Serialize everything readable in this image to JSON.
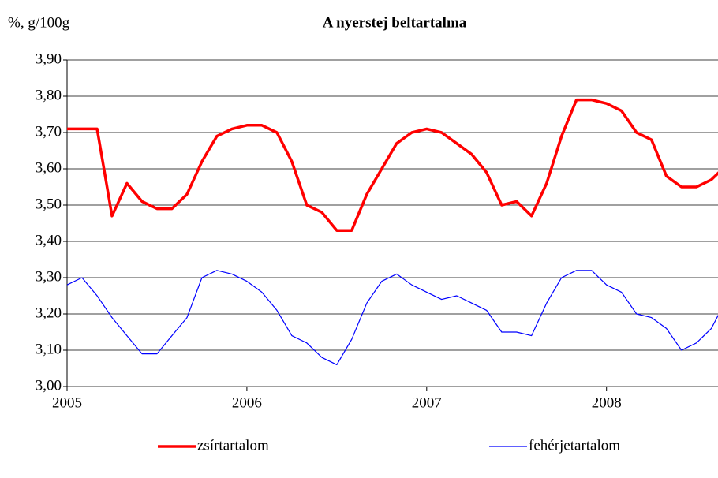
{
  "chart_data": {
    "type": "line",
    "title": "A nyerstej beltartalma",
    "y_label": "%, g/100g",
    "x": [
      2005,
      2005.083,
      2005.167,
      2005.25,
      2005.333,
      2005.417,
      2005.5,
      2005.583,
      2005.667,
      2005.75,
      2005.833,
      2005.917,
      2006,
      2006.083,
      2006.167,
      2006.25,
      2006.333,
      2006.417,
      2006.5,
      2006.583,
      2006.667,
      2006.75,
      2006.833,
      2006.917,
      2007,
      2007.083,
      2007.167,
      2007.25,
      2007.333,
      2007.417,
      2007.5,
      2007.583,
      2007.667,
      2007.75,
      2007.833,
      2007.917,
      2008,
      2008.083,
      2008.167,
      2008.25,
      2008.333,
      2008.417,
      2008.5,
      2008.583,
      2008.667
    ],
    "series": [
      {
        "name": "zsírtartalom",
        "color": "#ff0000",
        "width": 3.5,
        "values": [
          3.71,
          3.71,
          3.71,
          3.47,
          3.56,
          3.51,
          3.49,
          3.49,
          3.53,
          3.62,
          3.69,
          3.71,
          3.72,
          3.72,
          3.7,
          3.62,
          3.5,
          3.48,
          3.43,
          3.43,
          3.53,
          3.6,
          3.67,
          3.7,
          3.71,
          3.7,
          3.67,
          3.64,
          3.59,
          3.5,
          3.51,
          3.47,
          3.56,
          3.69,
          3.79,
          3.79,
          3.78,
          3.76,
          3.7,
          3.68,
          3.58,
          3.55,
          3.55,
          3.57,
          3.61
        ]
      },
      {
        "name": "fehérjetartalom",
        "color": "#0000ff",
        "width": 1.2,
        "values": [
          3.28,
          3.3,
          3.25,
          3.19,
          3.14,
          3.09,
          3.09,
          3.14,
          3.19,
          3.3,
          3.32,
          3.31,
          3.29,
          3.26,
          3.21,
          3.14,
          3.12,
          3.08,
          3.06,
          3.13,
          3.23,
          3.29,
          3.31,
          3.28,
          3.26,
          3.24,
          3.25,
          3.23,
          3.21,
          3.15,
          3.15,
          3.14,
          3.23,
          3.3,
          3.32,
          3.32,
          3.28,
          3.26,
          3.2,
          3.19,
          3.16,
          3.1,
          3.12,
          3.16,
          3.24
        ]
      }
    ],
    "xlim": [
      2005,
      2008.62
    ],
    "xticks": [
      2005,
      2006,
      2007,
      2008
    ],
    "ylim": [
      3.0,
      3.9
    ],
    "yticks": [
      {
        "value": 3.0,
        "label": "3,00"
      },
      {
        "value": 3.1,
        "label": "3,10"
      },
      {
        "value": 3.2,
        "label": "3,20"
      },
      {
        "value": 3.3,
        "label": "3,30"
      },
      {
        "value": 3.4,
        "label": "3,40"
      },
      {
        "value": 3.5,
        "label": "3,50"
      },
      {
        "value": 3.6,
        "label": "3,60"
      },
      {
        "value": 3.7,
        "label": "3,70"
      },
      {
        "value": 3.8,
        "label": "3,80"
      },
      {
        "value": 3.9,
        "label": "3,90"
      }
    ],
    "grid": true,
    "legend": "bottom"
  }
}
